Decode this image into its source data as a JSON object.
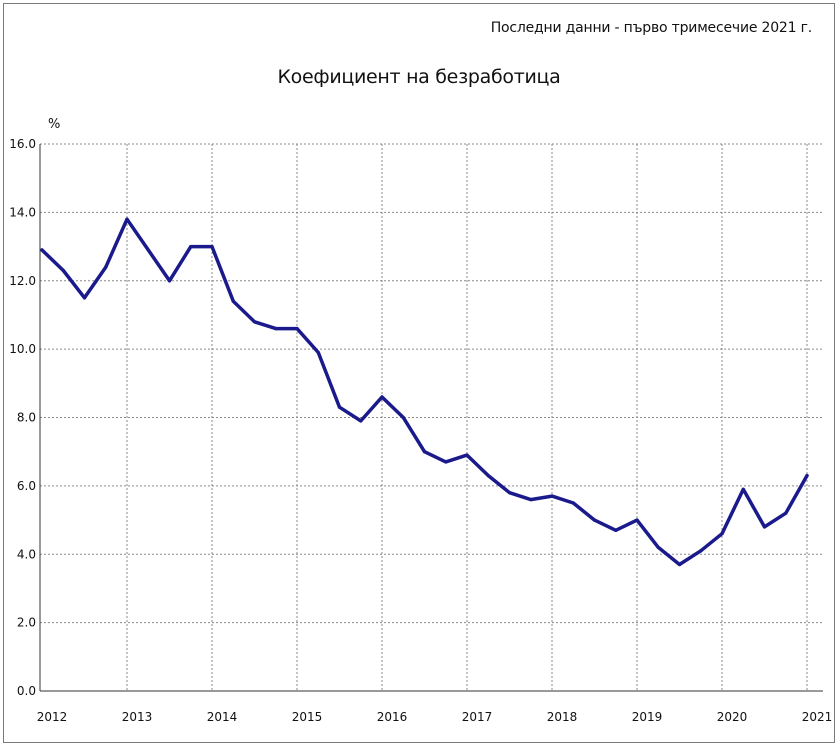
{
  "note": "Последни данни - първо тримесечие 2021 г.",
  "chart_data": {
    "type": "line",
    "title": "Коефициент на безработица",
    "ylabel": "%",
    "xlabel": "",
    "ylim": [
      0,
      16
    ],
    "yticks": [
      "0.0",
      "2.0",
      "4.0",
      "6.0",
      "8.0",
      "10.0",
      "12.0",
      "14.0",
      "16.0"
    ],
    "xticks": [
      "2012",
      "2013",
      "2014",
      "2015",
      "2016",
      "2017",
      "2018",
      "2019",
      "2020",
      "2021"
    ],
    "x": [
      "2012 Q1",
      "2012 Q2",
      "2012 Q3",
      "2012 Q4",
      "2013 Q1",
      "2013 Q2",
      "2013 Q3",
      "2013 Q4",
      "2014 Q1",
      "2014 Q2",
      "2014 Q3",
      "2014 Q4",
      "2015 Q1",
      "2015 Q2",
      "2015 Q3",
      "2015 Q4",
      "2016 Q1",
      "2016 Q2",
      "2016 Q3",
      "2016 Q4",
      "2017 Q1",
      "2017 Q2",
      "2017 Q3",
      "2017 Q4",
      "2018 Q1",
      "2018 Q2",
      "2018 Q3",
      "2018 Q4",
      "2019 Q1",
      "2019 Q2",
      "2019 Q3",
      "2019 Q4",
      "2020 Q1",
      "2020 Q2",
      "2020 Q3",
      "2020 Q4",
      "2021 Q1"
    ],
    "series": [
      {
        "values": [
          12.9,
          12.3,
          11.5,
          12.4,
          13.8,
          12.9,
          12.0,
          13.0,
          13.0,
          11.4,
          10.8,
          10.6,
          10.6,
          9.9,
          8.3,
          7.9,
          8.6,
          8.0,
          7.0,
          6.7,
          6.9,
          6.3,
          5.8,
          5.6,
          5.7,
          5.5,
          5.0,
          4.7,
          5.0,
          4.2,
          3.7,
          4.1,
          4.6,
          5.9,
          4.8,
          5.2,
          6.3
        ],
        "color": "#1a1a8c"
      }
    ],
    "grid": true,
    "legend": "none"
  }
}
